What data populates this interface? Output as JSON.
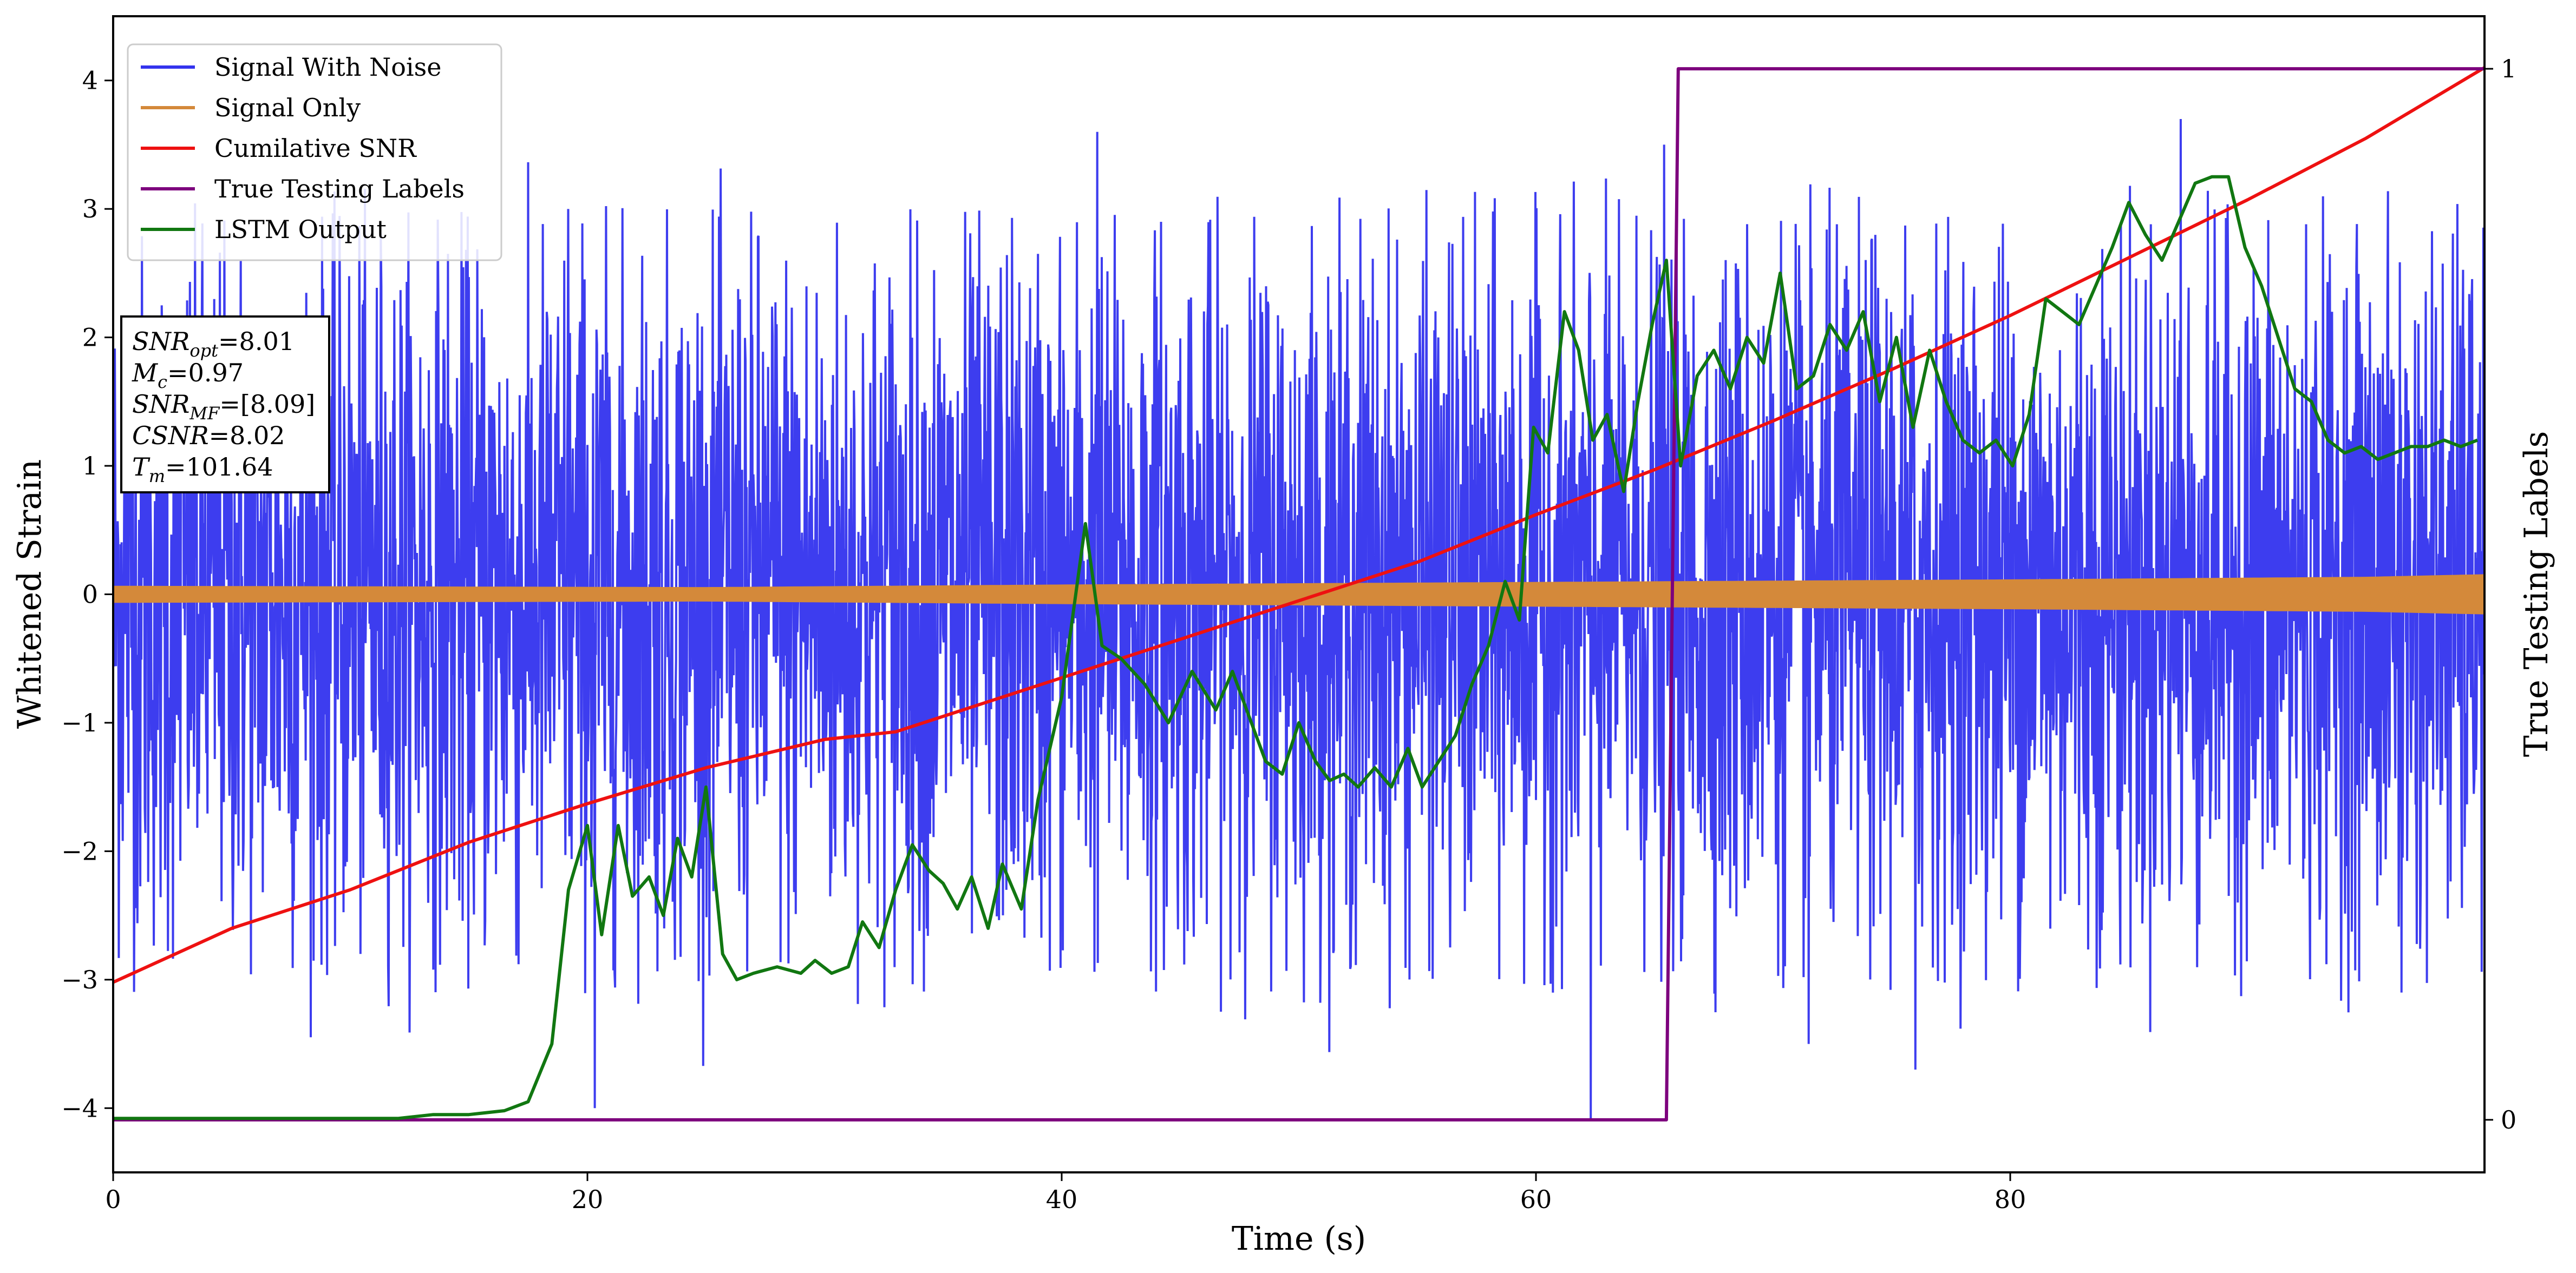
{
  "chart_data": {
    "type": "line",
    "xlabel": "Time (s)",
    "ylabel": "Whitened Strain",
    "y2label": "True Testing Labels",
    "xlim": [
      0,
      100
    ],
    "ylim": [
      -4.5,
      4.5
    ],
    "y2lim": [
      -0.05,
      1.05
    ],
    "grid": false,
    "legend_position": "top-left",
    "x_ticks": [
      0,
      20,
      40,
      60,
      80
    ],
    "y_ticks": [
      -4,
      -3,
      -2,
      -1,
      0,
      1,
      2,
      3,
      4
    ],
    "y2_ticks": [
      0,
      1
    ],
    "series": [
      {
        "name": "Signal With Noise",
        "color": "#3333ee",
        "axis": "left",
        "kind": "dense-noise",
        "typical_range": [
          -2.5,
          2.5
        ],
        "peaks": [
          {
            "x": 19.2,
            "y": 3.0
          },
          {
            "x": 20.3,
            "y": -4.0
          },
          {
            "x": 41.5,
            "y": 3.6
          },
          {
            "x": 62.3,
            "y": -4.1
          },
          {
            "x": 65.4,
            "y": 3.5
          },
          {
            "x": 71.5,
            "y": -3.5
          },
          {
            "x": 76.0,
            "y": -3.7
          },
          {
            "x": 87.2,
            "y": 3.7
          },
          {
            "x": 96.5,
            "y": -3.1
          }
        ]
      },
      {
        "name": "Signal Only",
        "color": "#d4893a",
        "axis": "left",
        "kind": "band",
        "amplitude": [
          {
            "x": 0,
            "y": 0.06
          },
          {
            "x": 25,
            "y": 0.05
          },
          {
            "x": 40,
            "y": 0.07
          },
          {
            "x": 60,
            "y": 0.09
          },
          {
            "x": 80,
            "y": 0.11
          },
          {
            "x": 95,
            "y": 0.13
          },
          {
            "x": 100,
            "y": 0.15
          }
        ]
      },
      {
        "name": "Cumilative SNR",
        "color": "#ee1111",
        "axis": "left",
        "x": [
          0,
          5,
          10,
          15,
          20,
          25,
          30,
          33,
          35,
          40,
          45,
          50,
          55,
          60,
          65,
          70,
          75,
          80,
          85,
          90,
          95,
          100
        ],
        "y": [
          -3.02,
          -2.6,
          -2.3,
          -1.93,
          -1.63,
          -1.35,
          -1.13,
          -1.07,
          -0.95,
          -0.65,
          -0.35,
          -0.05,
          0.25,
          0.62,
          0.97,
          1.35,
          1.75,
          2.17,
          2.62,
          3.07,
          3.55,
          4.1
        ]
      },
      {
        "name": "True Testing Labels",
        "color": "#7d007d",
        "axis": "right",
        "x": [
          0,
          65.5,
          66.0,
          100
        ],
        "y": [
          0,
          0,
          1,
          1
        ]
      },
      {
        "name": "LSTM Output",
        "color": "#117711",
        "axis": "left",
        "x": [
          0,
          12,
          13.5,
          15,
          16.5,
          17.5,
          18.5,
          19.2,
          20.0,
          20.6,
          21.3,
          21.9,
          22.6,
          23.2,
          23.8,
          24.4,
          25.0,
          25.7,
          26.3,
          27.0,
          28.0,
          29.0,
          29.6,
          30.3,
          31.0,
          31.6,
          32.3,
          33.0,
          33.7,
          34.4,
          35.0,
          35.6,
          36.2,
          36.9,
          37.5,
          38.3,
          39.0,
          40.0,
          41.0,
          41.7,
          42.5,
          43.5,
          44.5,
          45.5,
          46.5,
          47.2,
          47.9,
          48.6,
          49.3,
          50.0,
          50.7,
          51.3,
          51.9,
          52.5,
          53.2,
          53.9,
          54.6,
          55.2,
          55.9,
          56.6,
          57.3,
          58.0,
          58.7,
          59.3,
          59.9,
          60.5,
          61.2,
          61.8,
          62.4,
          63.0,
          63.7,
          64.3,
          64.9,
          65.5,
          66.1,
          66.8,
          67.5,
          68.2,
          68.9,
          69.6,
          70.3,
          71.0,
          71.7,
          72.4,
          73.1,
          73.8,
          74.5,
          75.2,
          75.9,
          76.6,
          77.3,
          78.0,
          78.7,
          79.4,
          80.1,
          80.8,
          81.5,
          82.2,
          82.9,
          83.6,
          84.3,
          85.0,
          85.7,
          86.4,
          87.1,
          87.8,
          88.5,
          89.2,
          89.9,
          90.6,
          91.3,
          92.0,
          92.7,
          93.4,
          94.1,
          94.8,
          95.5,
          96.2,
          96.9,
          97.6,
          98.3,
          99.0,
          99.7
        ],
        "y": [
          -4.08,
          -4.08,
          -4.05,
          -4.05,
          -4.02,
          -3.95,
          -3.5,
          -2.3,
          -1.8,
          -2.65,
          -1.8,
          -2.35,
          -2.2,
          -2.5,
          -1.9,
          -2.2,
          -1.5,
          -2.8,
          -3.0,
          -2.95,
          -2.9,
          -2.95,
          -2.85,
          -2.95,
          -2.9,
          -2.55,
          -2.75,
          -2.3,
          -1.95,
          -2.15,
          -2.25,
          -2.45,
          -2.2,
          -2.6,
          -2.1,
          -2.45,
          -1.6,
          -0.8,
          0.55,
          -0.4,
          -0.5,
          -0.7,
          -1.0,
          -0.6,
          -0.9,
          -0.6,
          -0.95,
          -1.3,
          -1.4,
          -1.0,
          -1.3,
          -1.45,
          -1.4,
          -1.5,
          -1.35,
          -1.5,
          -1.2,
          -1.5,
          -1.3,
          -1.1,
          -0.7,
          -0.4,
          0.1,
          -0.2,
          1.3,
          1.1,
          2.2,
          1.9,
          1.2,
          1.4,
          0.8,
          1.5,
          2.1,
          2.6,
          1.0,
          1.7,
          1.9,
          1.6,
          2.0,
          1.8,
          2.5,
          1.6,
          1.7,
          2.1,
          1.9,
          2.2,
          1.5,
          2.0,
          1.3,
          1.9,
          1.5,
          1.2,
          1.1,
          1.2,
          1.0,
          1.4,
          2.3,
          2.2,
          2.1,
          2.4,
          2.7,
          3.05,
          2.8,
          2.6,
          2.9,
          3.2,
          3.25,
          3.25,
          2.7,
          2.4,
          2.0,
          1.6,
          1.5,
          1.2,
          1.1,
          1.15,
          1.05,
          1.1,
          1.15,
          1.15,
          1.2,
          1.15,
          1.2
        ]
      }
    ],
    "annotation": {
      "lines": [
        {
          "key": "SNR",
          "sub": "opt",
          "value": "=8.01"
        },
        {
          "key": "M",
          "sub": "c",
          "value": "=0.97"
        },
        {
          "key": "SNR",
          "sub": "MF",
          "value": "=[8.09]"
        },
        {
          "key": "CSNR",
          "sub": "",
          "value": "=8.02"
        },
        {
          "key": "T",
          "sub": "m",
          "value": "=101.64"
        }
      ]
    }
  }
}
